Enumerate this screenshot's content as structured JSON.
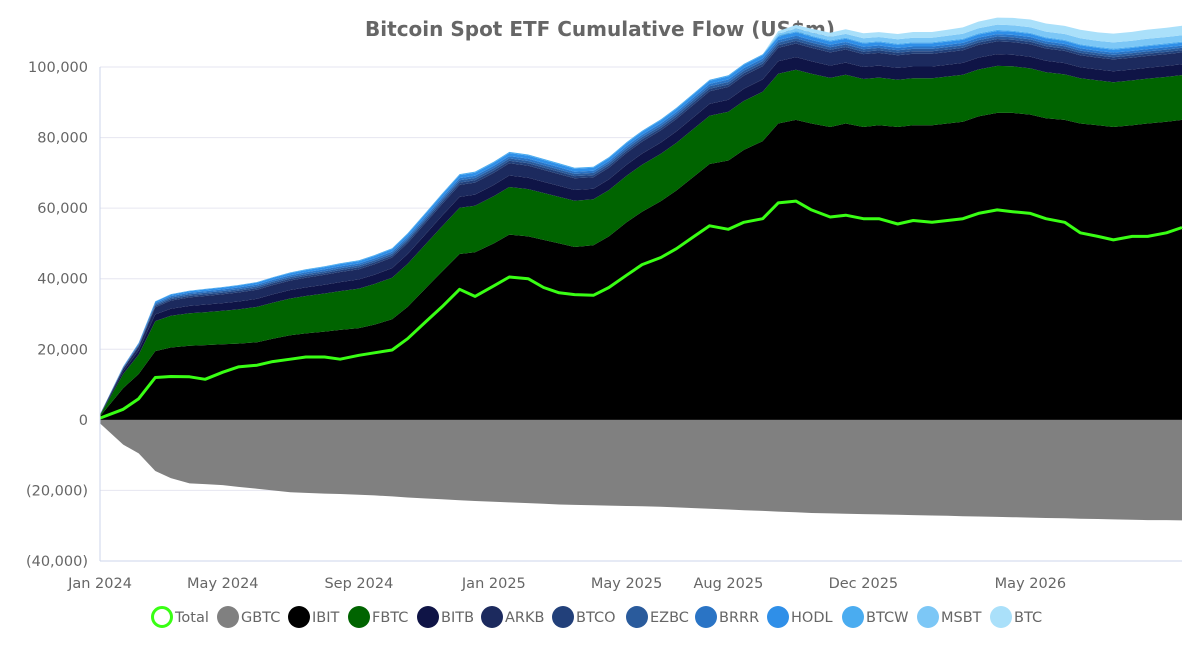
{
  "chart_data": {
    "type": "area",
    "title": "Bitcoin Spot ETF Cumulative Flow (US$m)",
    "xlabel": "",
    "ylabel": "",
    "x_ticks": [
      "Jan 2024",
      "May 2024",
      "Sep 2024",
      "Jan 2025",
      "May 2025",
      "Aug 2025",
      "Dec 2025",
      "May 2026"
    ],
    "y_ticks": [
      "100,000",
      "80,000",
      "60,000",
      "40,000",
      "20,000",
      "0",
      "(20,000)",
      "(40,000)"
    ],
    "ylim": [
      -40000,
      100000
    ],
    "grid": "horizontal",
    "legend_position": "bottom",
    "x": [
      "2024-01-11",
      "2024-02-01",
      "2024-02-15",
      "2024-03-01",
      "2024-03-15",
      "2024-04-01",
      "2024-04-15",
      "2024-05-01",
      "2024-05-15",
      "2024-06-01",
      "2024-06-15",
      "2024-07-01",
      "2024-07-15",
      "2024-08-01",
      "2024-08-15",
      "2024-09-01",
      "2024-09-15",
      "2024-10-01",
      "2024-10-15",
      "2024-11-01",
      "2024-11-15",
      "2024-12-01",
      "2024-12-15",
      "2025-01-01",
      "2025-01-15",
      "2025-02-01",
      "2025-02-15",
      "2025-03-01",
      "2025-03-15",
      "2025-04-01",
      "2025-04-15",
      "2025-05-01",
      "2025-05-15",
      "2025-06-01",
      "2025-06-15",
      "2025-07-01",
      "2025-07-15",
      "2025-08-01",
      "2025-08-15",
      "2025-09-01",
      "2025-09-15",
      "2025-10-01",
      "2025-10-15",
      "2025-11-01",
      "2025-11-15",
      "2025-12-01",
      "2025-12-15",
      "2026-01-01",
      "2026-01-15",
      "2026-02-01",
      "2026-02-15",
      "2026-03-01",
      "2026-03-15",
      "2026-04-01",
      "2026-04-15",
      "2026-05-01",
      "2026-05-15",
      "2026-06-01",
      "2026-06-15",
      "2026-07-01",
      "2026-07-15",
      "2026-08-01",
      "2026-08-15",
      "2026-09-01",
      "2026-09-15"
    ],
    "series": [
      {
        "name": "Total",
        "color": "#39ff14",
        "kind": "line",
        "values": [
          500,
          3000,
          6000,
          12000,
          12300,
          12200,
          11500,
          13500,
          15000,
          15500,
          16500,
          17200,
          17800,
          17800,
          17200,
          18300,
          19000,
          19800,
          23000,
          28000,
          32000,
          37000,
          35000,
          38000,
          40500,
          40000,
          37500,
          36000,
          35500,
          35300,
          37500,
          41000,
          44000,
          46000,
          48500,
          52000,
          55000,
          54000,
          56000,
          57000,
          61500,
          62000,
          59500,
          57500,
          58000,
          57000,
          57000,
          55500,
          56500,
          56000,
          56500,
          57000,
          58500,
          59500,
          59000,
          58500,
          57000,
          56000,
          53000,
          52000,
          51000,
          52000,
          52000,
          53000,
          54500
        ]
      },
      {
        "name": "GBTC",
        "color": "#808080",
        "kind": "area",
        "values": [
          -1000,
          -7000,
          -9500,
          -14500,
          -16500,
          -18000,
          -18200,
          -18500,
          -19000,
          -19500,
          -20000,
          -20500,
          -20700,
          -20900,
          -21000,
          -21200,
          -21400,
          -21700,
          -22000,
          -22300,
          -22500,
          -22800,
          -23000,
          -23200,
          -23400,
          -23600,
          -23800,
          -24000,
          -24100,
          -24200,
          -24300,
          -24400,
          -24500,
          -24600,
          -24800,
          -25000,
          -25200,
          -25400,
          -25600,
          -25800,
          -26000,
          -26200,
          -26400,
          -26500,
          -26600,
          -26700,
          -26800,
          -26900,
          -27000,
          -27100,
          -27200,
          -27300,
          -27400,
          -27500,
          -27600,
          -27700,
          -27800,
          -27900,
          -28000,
          -28100,
          -28200,
          -28300,
          -28400,
          -28400,
          -28500
        ]
      },
      {
        "name": "IBIT",
        "color": "#000000",
        "kind": "area",
        "values": [
          1000,
          9000,
          13000,
          19500,
          20500,
          21000,
          21200,
          21400,
          21600,
          22000,
          23000,
          24000,
          24500,
          25000,
          25500,
          26000,
          27000,
          28500,
          32000,
          37500,
          42000,
          47000,
          47500,
          50000,
          52500,
          52000,
          51000,
          50000,
          49000,
          49500,
          52000,
          56000,
          59000,
          62000,
          65000,
          69000,
          72500,
          73500,
          76500,
          79000,
          84000,
          85000,
          84000,
          83000,
          84000,
          83000,
          83500,
          83000,
          83500,
          83500,
          84000,
          84500,
          86000,
          87000,
          87000,
          86500,
          85500,
          85000,
          84000,
          83500,
          83000,
          83500,
          84000,
          84500,
          85000
        ]
      },
      {
        "name": "FBTC",
        "color": "#006400",
        "kind": "area",
        "values": [
          300,
          4000,
          5500,
          8500,
          9000,
          9200,
          9300,
          9500,
          9700,
          10000,
          10200,
          10400,
          10600,
          10800,
          11000,
          11200,
          11500,
          11800,
          12200,
          12500,
          12800,
          13100,
          13200,
          13400,
          13500,
          13400,
          13300,
          13200,
          13100,
          13000,
          13100,
          13200,
          13300,
          13400,
          13500,
          13600,
          13700,
          13800,
          13900,
          14000,
          14100,
          14200,
          14100,
          13900,
          13800,
          13600,
          13500,
          13400,
          13300,
          13300,
          13300,
          13300,
          13300,
          13300,
          13200,
          13100,
          13000,
          12900,
          12800,
          12700,
          12700,
          12700,
          12700,
          12700,
          12700
        ]
      },
      {
        "name": "BITB",
        "color": "#0f1446",
        "kind": "area",
        "values": [
          100,
          800,
          1200,
          1900,
          2000,
          2100,
          2150,
          2200,
          2250,
          2300,
          2350,
          2400,
          2450,
          2500,
          2550,
          2600,
          2650,
          2700,
          2800,
          2900,
          3000,
          3100,
          3150,
          3200,
          3250,
          3200,
          3150,
          3100,
          3050,
          3000,
          3050,
          3100,
          3150,
          3200,
          3250,
          3300,
          3350,
          3400,
          3450,
          3500,
          3550,
          3600,
          3550,
          3500,
          3450,
          3400,
          3400,
          3350,
          3350,
          3350,
          3350,
          3350,
          3350,
          3350,
          3300,
          3300,
          3250,
          3200,
          3150,
          3100,
          3100,
          3100,
          3100,
          3100,
          3100
        ]
      },
      {
        "name": "ARKB",
        "color": "#1c2a5e",
        "kind": "area",
        "values": [
          100,
          700,
          1100,
          2000,
          2300,
          2400,
          2450,
          2500,
          2550,
          2600,
          2650,
          2700,
          2750,
          2800,
          2850,
          2900,
          2950,
          3000,
          3100,
          3200,
          3300,
          3400,
          3400,
          3450,
          3500,
          3450,
          3400,
          3350,
          3300,
          3250,
          3300,
          3350,
          3400,
          3450,
          3500,
          3550,
          3600,
          3650,
          3700,
          3750,
          3800,
          3850,
          3800,
          3750,
          3700,
          3650,
          3600,
          3600,
          3600,
          3600,
          3600,
          3600,
          3600,
          3600,
          3550,
          3550,
          3500,
          3450,
          3400,
          3350,
          3350,
          3350,
          3350,
          3350,
          3350
        ]
      },
      {
        "name": "BTCO",
        "color": "#22407a",
        "kind": "area",
        "values": [
          20,
          150,
          250,
          400,
          420,
          440,
          450,
          460,
          470,
          480,
          490,
          500,
          510,
          520,
          530,
          540,
          550,
          560,
          580,
          600,
          620,
          640,
          650,
          660,
          670,
          660,
          650,
          640,
          630,
          620,
          630,
          640,
          650,
          660,
          670,
          680,
          690,
          700,
          710,
          720,
          730,
          740,
          730,
          720,
          710,
          700,
          700,
          690,
          690,
          690,
          690,
          690,
          690,
          690,
          680,
          680,
          670,
          660,
          650,
          640,
          640,
          640,
          640,
          640,
          640
        ]
      },
      {
        "name": "EZBC",
        "color": "#2a5b9c",
        "kind": "area",
        "values": [
          20,
          150,
          250,
          400,
          420,
          440,
          450,
          460,
          470,
          480,
          490,
          500,
          510,
          520,
          530,
          540,
          550,
          560,
          580,
          600,
          620,
          640,
          650,
          660,
          670,
          660,
          650,
          640,
          630,
          620,
          630,
          640,
          650,
          660,
          670,
          680,
          690,
          700,
          710,
          720,
          730,
          740,
          730,
          720,
          710,
          700,
          700,
          690,
          690,
          690,
          690,
          690,
          690,
          690,
          680,
          680,
          670,
          660,
          650,
          640,
          640,
          640,
          640,
          640,
          640
        ]
      },
      {
        "name": "BRRR",
        "color": "#2a74c5",
        "kind": "area",
        "values": [
          20,
          150,
          250,
          400,
          420,
          440,
          450,
          460,
          470,
          480,
          490,
          500,
          510,
          520,
          530,
          540,
          550,
          560,
          580,
          600,
          620,
          640,
          650,
          660,
          670,
          660,
          650,
          640,
          630,
          620,
          630,
          640,
          650,
          660,
          670,
          680,
          690,
          700,
          710,
          720,
          730,
          740,
          730,
          720,
          710,
          700,
          700,
          690,
          690,
          690,
          690,
          690,
          690,
          690,
          680,
          680,
          670,
          660,
          650,
          640,
          640,
          640,
          640,
          640,
          640
        ]
      },
      {
        "name": "HODL",
        "color": "#2f8fe8",
        "kind": "area",
        "values": [
          20,
          150,
          250,
          400,
          450,
          480,
          500,
          520,
          540,
          560,
          580,
          600,
          620,
          640,
          660,
          680,
          700,
          720,
          750,
          780,
          810,
          840,
          850,
          860,
          870,
          860,
          850,
          840,
          830,
          820,
          830,
          840,
          850,
          860,
          870,
          880,
          890,
          900,
          910,
          920,
          930,
          940,
          930,
          920,
          910,
          900,
          900,
          890,
          890,
          890,
          890,
          890,
          890,
          890,
          880,
          880,
          870,
          860,
          850,
          840,
          840,
          840,
          840,
          840,
          840
        ]
      },
      {
        "name": "BTCW",
        "color": "#4aacf0",
        "kind": "area",
        "values": [
          10,
          50,
          80,
          120,
          130,
          140,
          150,
          160,
          170,
          180,
          190,
          200,
          210,
          220,
          230,
          240,
          250,
          260,
          270,
          280,
          290,
          300,
          300,
          300,
          300,
          300,
          300,
          300,
          300,
          300,
          300,
          300,
          300,
          300,
          300,
          300,
          300,
          300,
          300,
          300,
          300,
          300,
          300,
          300,
          300,
          300,
          300,
          300,
          300,
          300,
          300,
          300,
          300,
          300,
          300,
          300,
          300,
          300,
          300,
          300,
          300,
          300,
          300,
          300,
          300
        ]
      },
      {
        "name": "MSBT",
        "color": "#7cc7f6",
        "kind": "area",
        "values": [
          0,
          0,
          0,
          0,
          0,
          0,
          0,
          0,
          0,
          0,
          0,
          0,
          0,
          0,
          0,
          0,
          0,
          0,
          0,
          0,
          0,
          0,
          0,
          0,
          0,
          0,
          0,
          0,
          0,
          0,
          0,
          0,
          0,
          0,
          0,
          0,
          0,
          0,
          0,
          0,
          500,
          800,
          900,
          1000,
          1100,
          1200,
          1200,
          1250,
          1300,
          1300,
          1350,
          1400,
          1450,
          1500,
          1550,
          1600,
          1600,
          1650,
          1700,
          1700,
          1750,
          1750,
          1800,
          1800,
          1800
        ]
      },
      {
        "name": "BTC",
        "color": "#aae0fa",
        "kind": "area",
        "values": [
          0,
          0,
          0,
          0,
          0,
          0,
          0,
          0,
          0,
          0,
          0,
          0,
          0,
          0,
          0,
          0,
          0,
          0,
          0,
          0,
          0,
          0,
          0,
          0,
          0,
          0,
          0,
          0,
          0,
          0,
          0,
          0,
          0,
          0,
          0,
          0,
          0,
          0,
          0,
          0,
          800,
          1000,
          1100,
          1200,
          1300,
          1400,
          1400,
          1500,
          1600,
          1600,
          1700,
          1800,
          1900,
          2000,
          2100,
          2200,
          2300,
          2300,
          2400,
          2400,
          2500,
          2500,
          2600,
          2600,
          2700
        ]
      }
    ]
  }
}
